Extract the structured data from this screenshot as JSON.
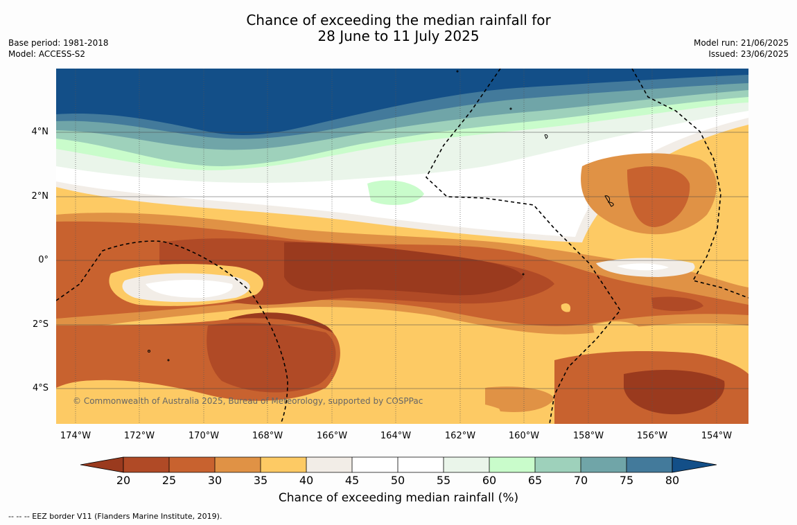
{
  "title": {
    "line1": "Chance of exceeding the median rainfall for",
    "line2": "28 June to 11 July 2025"
  },
  "meta_left": {
    "base_period": "Base period: 1981-2018",
    "model": "Model: ACCESS-S2"
  },
  "meta_right": {
    "model_run": "Model run: 21/06/2025",
    "issued": "Issued: 23/06/2025"
  },
  "axes": {
    "lat_ticks": [
      "4°N",
      "2°N",
      "0°",
      "2°S",
      "4°S"
    ],
    "lon_ticks": [
      "174°W",
      "172°W",
      "170°W",
      "168°W",
      "166°W",
      "164°W",
      "162°W",
      "160°W",
      "158°W",
      "156°W",
      "154°W"
    ]
  },
  "copyright": "© Commonwealth of Australia 2025, Bureau of Meteorology, supported by COSPPac",
  "colorbar": {
    "label": "Chance of exceeding median rainfall (%)",
    "ticks": [
      "20",
      "25",
      "30",
      "35",
      "40",
      "45",
      "50",
      "55",
      "60",
      "65",
      "70",
      "75",
      "80"
    ],
    "colors": [
      "#9a3a1e",
      "#b04a26",
      "#c8622f",
      "#e09245",
      "#fdca64",
      "#f2ede7",
      "#ffffff",
      "#ffffff",
      "#eaf5ea",
      "#c9fccb",
      "#9ed1bb",
      "#70a5a8",
      "#437a9b",
      "#134f88"
    ]
  },
  "footer": "--  --  -- EEZ border V11 (Flanders Marine Institute, 2019)."
}
